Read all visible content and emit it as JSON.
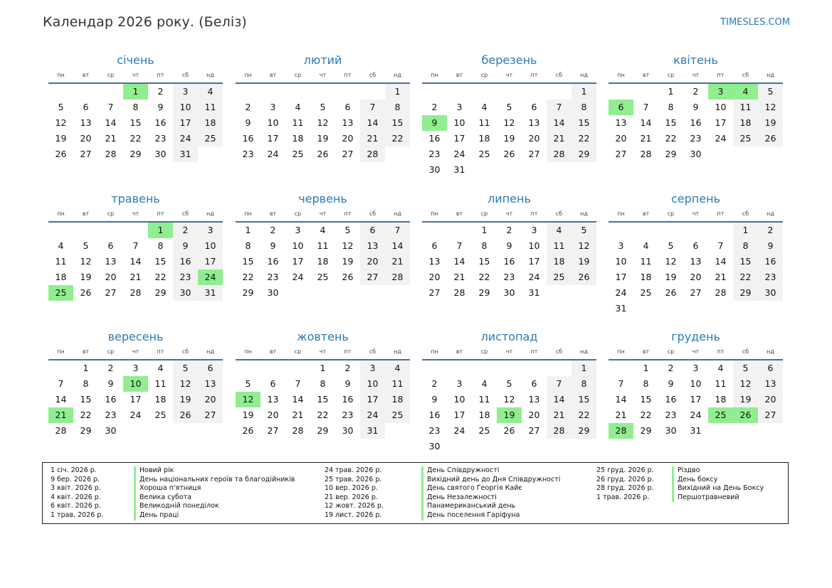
{
  "title": "Календар 2026 року. (Беліз)",
  "site": "TIMESLES.COM",
  "weekdays": [
    "пн",
    "вт",
    "ср",
    "чт",
    "пт",
    "сб",
    "нд"
  ],
  "colors": {
    "accent": "#2a7ab8",
    "holiday": "#90ee90",
    "weekend": "#f2f2f2"
  },
  "months": [
    {
      "name": "січень",
      "start": 3,
      "days": 31,
      "holidays": [
        1
      ]
    },
    {
      "name": "лютий",
      "start": 6,
      "days": 28,
      "holidays": []
    },
    {
      "name": "березень",
      "start": 6,
      "days": 31,
      "holidays": [
        9
      ]
    },
    {
      "name": "квітень",
      "start": 2,
      "days": 30,
      "holidays": [
        3,
        4,
        6
      ]
    },
    {
      "name": "травень",
      "start": 4,
      "days": 31,
      "holidays": [
        1,
        24,
        25
      ]
    },
    {
      "name": "червень",
      "start": 0,
      "days": 30,
      "holidays": []
    },
    {
      "name": "липень",
      "start": 2,
      "days": 31,
      "holidays": []
    },
    {
      "name": "серпень",
      "start": 5,
      "days": 31,
      "holidays": []
    },
    {
      "name": "вересень",
      "start": 1,
      "days": 30,
      "holidays": [
        10,
        21
      ]
    },
    {
      "name": "жовтень",
      "start": 3,
      "days": 31,
      "holidays": [
        12
      ]
    },
    {
      "name": "листопад",
      "start": 6,
      "days": 30,
      "holidays": [
        19
      ]
    },
    {
      "name": "грудень",
      "start": 1,
      "days": 31,
      "holidays": [
        25,
        26,
        28
      ]
    }
  ],
  "holidays": [
    {
      "date": "1 січ. 2026 р.",
      "name": "Новий рік"
    },
    {
      "date": "9 бер. 2026 р.",
      "name": "День національних героїв та благодійників"
    },
    {
      "date": "3 квіт. 2026 р.",
      "name": "Хороша п'ятниця"
    },
    {
      "date": "4 квіт. 2026 р.",
      "name": "Велика субота"
    },
    {
      "date": "6 квіт. 2026 р.",
      "name": "Великодній понеділок"
    },
    {
      "date": "1 трав. 2026 р.",
      "name": "День праці"
    },
    {
      "date": "24 трав. 2026 р.",
      "name": "День Співдружності"
    },
    {
      "date": "25 трав. 2026 р.",
      "name": "Вихідний день до Дня Співдружності"
    },
    {
      "date": "10 вер. 2026 р.",
      "name": "День святого Георгія Кайє"
    },
    {
      "date": "21 вер. 2026 р.",
      "name": "День Незалежності"
    },
    {
      "date": "12 жовт. 2026 р.",
      "name": "Панамериканський день"
    },
    {
      "date": "19 лист. 2026 р.",
      "name": "День поселення Гаріфуна"
    },
    {
      "date": "25 груд. 2026 р.",
      "name": "Різдво"
    },
    {
      "date": "26 груд. 2026 р.",
      "name": "День боксу"
    },
    {
      "date": "28 груд. 2026 р.",
      "name": "Вихідний на День Боксу"
    },
    {
      "date": "1 трав. 2026 р.",
      "name": "Першотравневий"
    }
  ]
}
